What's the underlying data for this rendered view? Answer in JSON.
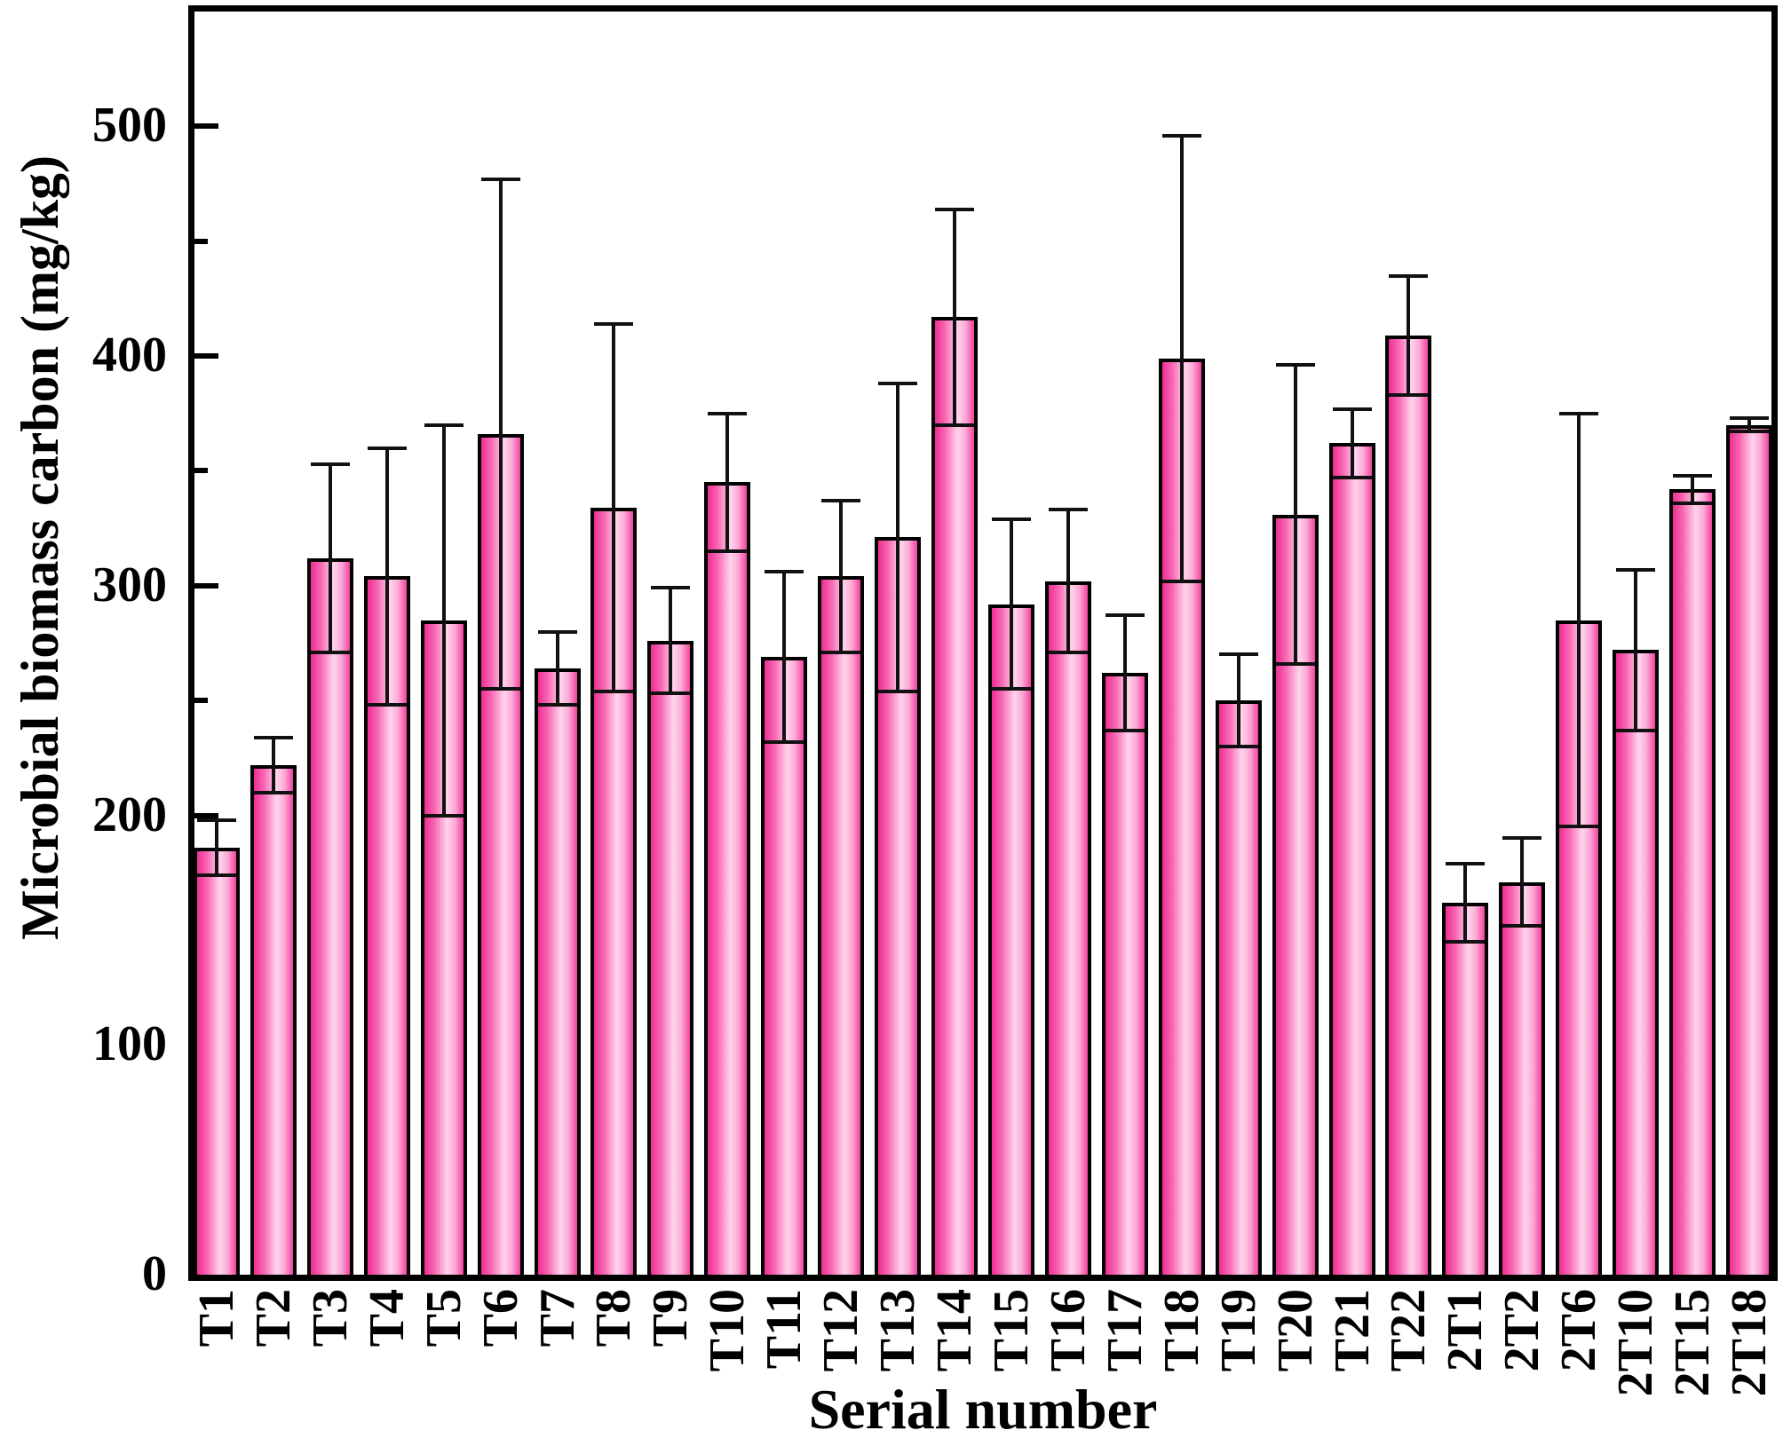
{
  "chart_data": {
    "type": "bar",
    "title": "",
    "xlabel": "Serial number",
    "ylabel": "Microbial biomass carbon (mg/kg)",
    "ylim": [
      0,
      550
    ],
    "ytick_major": [
      0,
      100,
      200,
      300,
      400,
      500
    ],
    "ytick_minor": [
      50,
      150,
      250,
      350,
      450
    ],
    "grid": false,
    "legend_position": "none",
    "bar_fill_gradient": [
      "#ee2e92",
      "#ffd4ec",
      "#f2439f"
    ],
    "bar_border_color": "#000000",
    "error_bar_color": "#111111",
    "categories": [
      "T1",
      "T2",
      "T3",
      "T4",
      "T5",
      "T6",
      "T7",
      "T8",
      "T9",
      "T10",
      "T11",
      "T12",
      "T13",
      "T14",
      "T15",
      "T16",
      "T17",
      "T18",
      "T19",
      "T20",
      "T21",
      "T22",
      "2T1",
      "2T2",
      "2T6",
      "2T10",
      "2T15",
      "2T18"
    ],
    "values": [
      186,
      222,
      312,
      304,
      285,
      366,
      264,
      334,
      276,
      345,
      269,
      304,
      321,
      417,
      292,
      302,
      262,
      399,
      250,
      331,
      362,
      409,
      162,
      171,
      285,
      272,
      342,
      370
    ],
    "errors": [
      12,
      12,
      41,
      56,
      85,
      111,
      16,
      80,
      23,
      30,
      37,
      33,
      67,
      47,
      37,
      31,
      25,
      97,
      20,
      65,
      15,
      26,
      17,
      19,
      90,
      35,
      6,
      3
    ]
  }
}
